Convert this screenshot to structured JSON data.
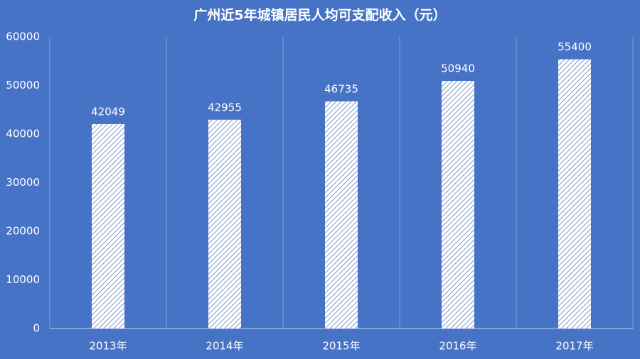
{
  "chart_data": {
    "type": "bar",
    "title": "广州近5年城镇居民人均可支配收入（元）",
    "categories": [
      "2013年",
      "2014年",
      "2015年",
      "2016年",
      "2017年"
    ],
    "values": [
      42049,
      42955,
      46735,
      50940,
      55400
    ],
    "color": "#ffffff",
    "ylim": [
      0,
      60000
    ],
    "yticks": [
      0,
      10000,
      20000,
      30000,
      40000,
      50000,
      60000
    ]
  }
}
